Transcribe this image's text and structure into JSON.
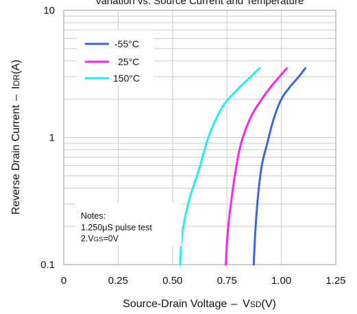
{
  "chart_data": {
    "type": "line",
    "title": "Variation vs. Source Current and Temperature",
    "xlabel": "Source-Drain Voltage - VSD(V)",
    "xlabel_main": "Source-Drain Voltage",
    "xlabel_dash": "–",
    "xlabel_sym_lead": "V",
    "xlabel_sym_sub": "SD",
    "xlabel_unit": "(V)",
    "ylabel": "Reverse Drain Current - IDR(A)",
    "ylabel_main": "Reverse Drain Current",
    "ylabel_dash": "–",
    "ylabel_sym_lead": "I",
    "ylabel_sym_sub": "DR",
    "ylabel_unit": "(A)",
    "xlim": [
      0,
      1.25
    ],
    "ylim": [
      0.1,
      10
    ],
    "yscale": "log",
    "grid": true,
    "legend": "top-left",
    "x_ticks": [
      {
        "value": 0,
        "label": "0"
      },
      {
        "value": 0.25,
        "label": "0.25"
      },
      {
        "value": 0.5,
        "label": "0.50"
      },
      {
        "value": 0.75,
        "label": "0.75"
      },
      {
        "value": 1.0,
        "label": "1.00"
      },
      {
        "value": 1.25,
        "label": "1.25"
      }
    ],
    "y_ticks": [
      {
        "value": 0.1,
        "label": "0.1"
      },
      {
        "value": 1,
        "label": "1"
      },
      {
        "value": 10,
        "label": "10"
      }
    ],
    "series": [
      {
        "name": "-55°C",
        "color": "#3a66e0",
        "points": [
          [
            0.873,
            0.1
          ],
          [
            0.876,
            0.13
          ],
          [
            0.882,
            0.2
          ],
          [
            0.893,
            0.35
          ],
          [
            0.91,
            0.6
          ],
          [
            0.935,
            0.9
          ],
          [
            0.965,
            1.4
          ],
          [
            1.0,
            2.0
          ],
          [
            1.04,
            2.5
          ],
          [
            1.08,
            3.0
          ],
          [
            1.11,
            3.5
          ]
        ]
      },
      {
        "name": "25°C",
        "color": "#ff22ee",
        "points": [
          [
            0.745,
            0.1
          ],
          [
            0.748,
            0.13
          ],
          [
            0.756,
            0.2
          ],
          [
            0.77,
            0.32
          ],
          [
            0.79,
            0.55
          ],
          [
            0.815,
            0.9
          ],
          [
            0.86,
            1.45
          ],
          [
            0.91,
            2.0
          ],
          [
            0.96,
            2.6
          ],
          [
            1.025,
            3.5
          ]
        ]
      },
      {
        "name": "150°C",
        "color": "#22eef0",
        "points": [
          [
            0.535,
            0.1
          ],
          [
            0.538,
            0.13
          ],
          [
            0.55,
            0.2
          ],
          [
            0.578,
            0.33
          ],
          [
            0.62,
            0.55
          ],
          [
            0.66,
            0.95
          ],
          [
            0.7,
            1.4
          ],
          [
            0.74,
            1.85
          ],
          [
            0.8,
            2.4
          ],
          [
            0.85,
            2.9
          ],
          [
            0.9,
            3.5
          ]
        ]
      }
    ],
    "annotations": [
      "Notes:",
      "1.250μS pulse test"
    ],
    "note2_lead": "2.V",
    "note2_sub": "GS",
    "note2_tail": "=0V"
  }
}
